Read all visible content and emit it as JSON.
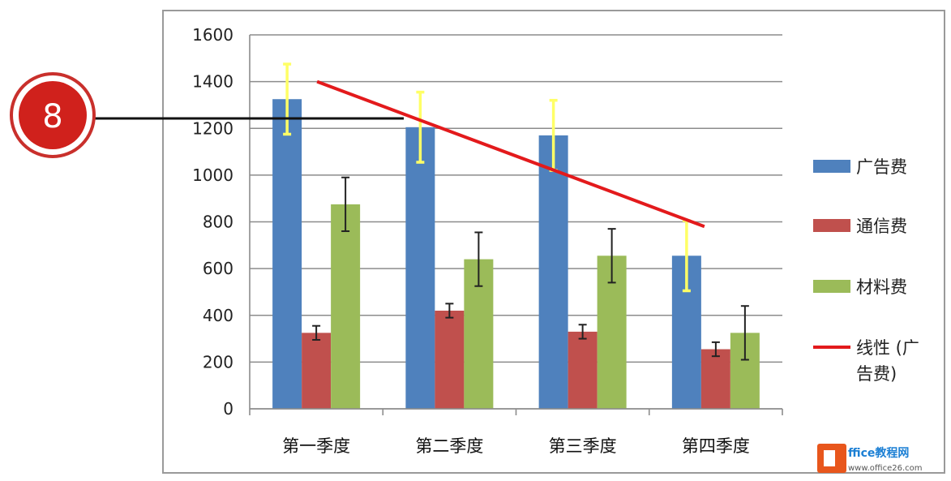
{
  "step_badge": {
    "label": "8"
  },
  "chart_data": {
    "type": "bar",
    "categories": [
      "第一季度",
      "第二季度",
      "第三季度",
      "第四季度"
    ],
    "ylim": [
      0,
      1600
    ],
    "yticks": [
      0,
      200,
      400,
      600,
      800,
      1000,
      1200,
      1400,
      1600
    ],
    "grid": true,
    "legend_position": "right",
    "series": [
      {
        "name": "广告费",
        "color": "#4f81bd",
        "values": [
          1325,
          1205,
          1170,
          655
        ],
        "errors": [
          150,
          150,
          150,
          150
        ],
        "error_color": "#ffff66"
      },
      {
        "name": "通信费",
        "color": "#c0504d",
        "values": [
          325,
          420,
          330,
          255
        ],
        "errors": [
          30,
          30,
          30,
          30
        ],
        "error_color": "#222222"
      },
      {
        "name": "材料费",
        "color": "#9bbb59",
        "values": [
          875,
          640,
          655,
          325
        ],
        "errors": [
          115,
          115,
          115,
          115
        ],
        "error_color": "#222222"
      }
    ],
    "trendline": {
      "name": "线性 (广告费)",
      "series": "广告费",
      "type": "linear",
      "color": "#e31a1c",
      "start": 1400,
      "end": 780
    }
  },
  "legend": [
    {
      "label": "广告费",
      "color": "#4f81bd",
      "kind": "box"
    },
    {
      "label": "通信费",
      "color": "#c0504d",
      "kind": "box"
    },
    {
      "label": "材料费",
      "color": "#9bbb59",
      "kind": "box"
    },
    {
      "label_line1": "线性 (广",
      "label_line2": "告费)",
      "color": "#e31a1c",
      "kind": "line"
    }
  ],
  "watermark": {
    "brand_text": "ffice教程网",
    "url_text": "www.office26.com"
  }
}
